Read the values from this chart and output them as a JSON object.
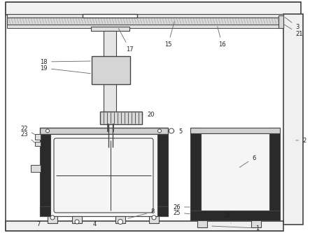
{
  "bg": "#ffffff",
  "lc": "#444444",
  "gray1": "#dddddd",
  "gray2": "#bbbbbb",
  "gray3": "#888888",
  "white": "#ffffff",
  "hatch_color": "#888888"
}
